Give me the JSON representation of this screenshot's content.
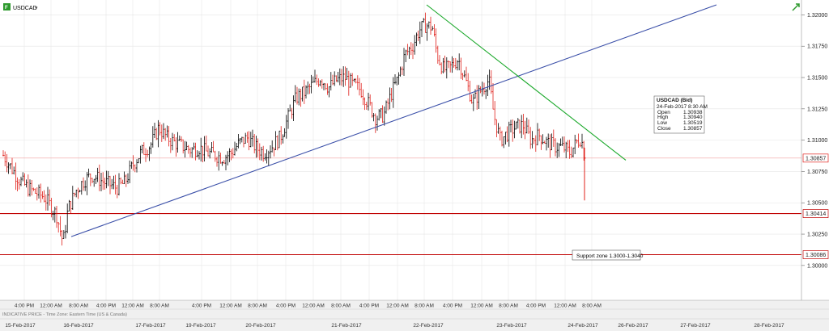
{
  "window": {
    "symbol": "USDCAD",
    "symbol_icon": "chart-symbol-icon",
    "trend_icon": "green-arrow-icon"
  },
  "footer_note": "INDICATIVE PRICE - Time Zone: Eastern Time (US & Canada)",
  "info_box": {
    "title": "USDCAD (Bid)",
    "datetime": "24-Feb-2017 8:30 AM",
    "rows": [
      {
        "label": "Open",
        "value": "1.30938"
      },
      {
        "label": "High",
        "value": "1.30940"
      },
      {
        "label": "Low",
        "value": "1.30519"
      },
      {
        "label": "Close",
        "value": "1.30857"
      }
    ]
  },
  "annotation": "Support zone 1.3000-1.3040",
  "colors": {
    "bar": "#000000",
    "bar_down": "#e0201a",
    "support_line": "#c00000",
    "close_line": "#f0a0a0",
    "uptrend_line": "#3a4fa8",
    "downtrend_line": "#1aa82a",
    "grid": "#e6e6e6",
    "price_tag_close": "#e0201a",
    "axis_bg": "#f0f0f0"
  },
  "chart_data": {
    "type": "ohlc",
    "title": "USDCAD",
    "ylim": [
      1.2978,
      1.3208
    ],
    "y_ticks": [
      {
        "value": 1.32,
        "label": "1.32000"
      },
      {
        "value": 1.3175,
        "label": "1.31750"
      },
      {
        "value": 1.315,
        "label": "1.31500"
      },
      {
        "value": 1.3125,
        "label": "1.31250"
      },
      {
        "value": 1.31,
        "label": "1.31000"
      },
      {
        "value": 1.3075,
        "label": "1.30750"
      },
      {
        "value": 1.305,
        "label": "1.30500"
      },
      {
        "value": 1.3025,
        "label": "1.30250"
      },
      {
        "value": 1.3,
        "label": "1.30000"
      }
    ],
    "price_tags": [
      {
        "value": 1.30857,
        "label": "1.30857"
      },
      {
        "value": 1.30414,
        "label": "1.30414"
      },
      {
        "value": 1.30086,
        "label": "1.30086"
      }
    ],
    "horizontal_lines": [
      {
        "name": "support-upper",
        "value": 1.30414
      },
      {
        "name": "support-lower",
        "value": 1.30086
      },
      {
        "name": "last-close",
        "value": 1.30857
      }
    ],
    "trendlines": [
      {
        "name": "uptrend",
        "x1": 88,
        "y1": 1.3023,
        "x2": 885,
        "y2": 1.3208
      },
      {
        "name": "downtrend",
        "x1": 527,
        "y1": 1.3208,
        "x2": 773,
        "y2": 1.3084
      }
    ],
    "x_time_ticks": [
      {
        "x": 30,
        "label": "4:00 PM"
      },
      {
        "x": 63,
        "label": "12:00 AM"
      },
      {
        "x": 97,
        "label": "8:00 AM"
      },
      {
        "x": 131,
        "label": "4:00 PM"
      },
      {
        "x": 164,
        "label": "12:00 AM"
      },
      {
        "x": 197,
        "label": "8:00 AM"
      },
      {
        "x": 249,
        "label": "4:00 PM"
      },
      {
        "x": 285,
        "label": "12:00 AM"
      },
      {
        "x": 318,
        "label": "8:00 AM"
      },
      {
        "x": 353,
        "label": "4:00 PM"
      },
      {
        "x": 387,
        "label": "12:00 AM"
      },
      {
        "x": 421,
        "label": "8:00 AM"
      },
      {
        "x": 456,
        "label": "4:00 PM"
      },
      {
        "x": 491,
        "label": "12:00 AM"
      },
      {
        "x": 524,
        "label": "8:00 AM"
      },
      {
        "x": 559,
        "label": "4:00 PM"
      },
      {
        "x": 595,
        "label": "12:00 AM"
      },
      {
        "x": 628,
        "label": "8:00 AM"
      },
      {
        "x": 662,
        "label": "4:00 PM"
      },
      {
        "x": 698,
        "label": "12:00 AM"
      },
      {
        "x": 731,
        "label": "8:00 AM"
      }
    ],
    "x_dates": [
      {
        "x": 25,
        "label": "15-Feb-2017"
      },
      {
        "x": 97,
        "label": "16-Feb-2017"
      },
      {
        "x": 186,
        "label": "17-Feb-2017"
      },
      {
        "x": 248,
        "label": "19-Feb-2017"
      },
      {
        "x": 322,
        "label": "20-Feb-2017"
      },
      {
        "x": 428,
        "label": "21-Feb-2017"
      },
      {
        "x": 529,
        "label": "22-Feb-2017"
      },
      {
        "x": 632,
        "label": "23-Feb-2017"
      },
      {
        "x": 720,
        "label": "24-Feb-2017"
      },
      {
        "x": 782,
        "label": "26-Feb-2017"
      },
      {
        "x": 859,
        "label": "27-Feb-2017"
      },
      {
        "x": 950,
        "label": "28-Feb-2017"
      }
    ],
    "bars_anchor_path": [
      [
        4,
        1.3088
      ],
      [
        14,
        1.3078
      ],
      [
        24,
        1.3068
      ],
      [
        34,
        1.3062
      ],
      [
        44,
        1.3058
      ],
      [
        54,
        1.3055
      ],
      [
        62,
        1.3048
      ],
      [
        70,
        1.304
      ],
      [
        78,
        1.3018
      ],
      [
        84,
        1.3045
      ],
      [
        94,
        1.306
      ],
      [
        104,
        1.3068
      ],
      [
        114,
        1.3072
      ],
      [
        124,
        1.3068
      ],
      [
        134,
        1.3065
      ],
      [
        144,
        1.3062
      ],
      [
        154,
        1.3066
      ],
      [
        164,
        1.308
      ],
      [
        174,
        1.309
      ],
      [
        186,
        1.3096
      ],
      [
        196,
        1.311
      ],
      [
        206,
        1.3102
      ],
      [
        216,
        1.3098
      ],
      [
        226,
        1.3095
      ],
      [
        236,
        1.3092
      ],
      [
        246,
        1.3094
      ],
      [
        256,
        1.309
      ],
      [
        266,
        1.3088
      ],
      [
        276,
        1.3086
      ],
      [
        286,
        1.309
      ],
      [
        296,
        1.3098
      ],
      [
        306,
        1.3102
      ],
      [
        316,
        1.3094
      ],
      [
        326,
        1.309
      ],
      [
        336,
        1.3095
      ],
      [
        346,
        1.3102
      ],
      [
        356,
        1.3118
      ],
      [
        366,
        1.3134
      ],
      [
        376,
        1.3138
      ],
      [
        386,
        1.3144
      ],
      [
        396,
        1.315
      ],
      [
        406,
        1.3142
      ],
      [
        416,
        1.3148
      ],
      [
        426,
        1.315
      ],
      [
        436,
        1.3144
      ],
      [
        446,
        1.314
      ],
      [
        456,
        1.3128
      ],
      [
        464,
        1.3118
      ],
      [
        474,
        1.312
      ],
      [
        484,
        1.3138
      ],
      [
        492,
        1.315
      ],
      [
        500,
        1.3168
      ],
      [
        510,
        1.3176
      ],
      [
        518,
        1.3188
      ],
      [
        526,
        1.3192
      ],
      [
        534,
        1.319
      ],
      [
        540,
        1.3168
      ],
      [
        548,
        1.3156
      ],
      [
        556,
        1.3158
      ],
      [
        566,
        1.3165
      ],
      [
        576,
        1.3146
      ],
      [
        584,
        1.313
      ],
      [
        594,
        1.314
      ],
      [
        604,
        1.3148
      ],
      [
        610,
        1.312
      ],
      [
        618,
        1.31
      ],
      [
        626,
        1.3105
      ],
      [
        636,
        1.311
      ],
      [
        646,
        1.3112
      ],
      [
        656,
        1.31
      ],
      [
        666,
        1.3104
      ],
      [
        676,
        1.3098
      ],
      [
        686,
        1.3095
      ],
      [
        696,
        1.3094
      ],
      [
        704,
        1.309
      ],
      [
        712,
        1.3098
      ],
      [
        718,
        1.3102
      ],
      [
        722,
        1.3086
      ]
    ],
    "last_bar": {
      "x": 722,
      "open": 1.30938,
      "high": 1.3094,
      "low": 1.30519,
      "close": 1.30857
    }
  }
}
